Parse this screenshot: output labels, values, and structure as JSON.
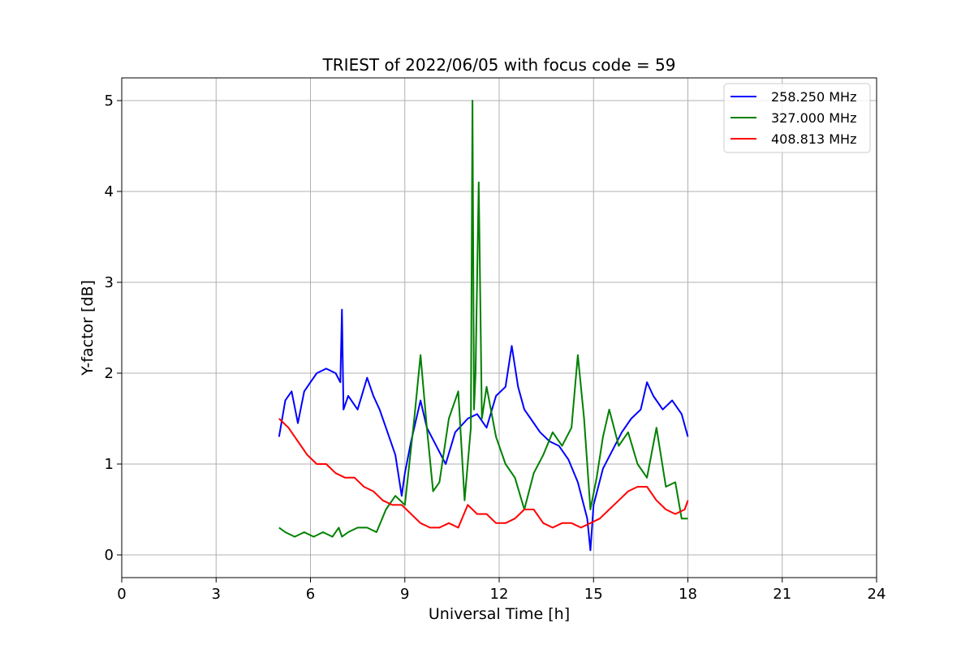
{
  "chart_data": {
    "type": "line",
    "title": "TRIEST of 2022/06/05 with focus code = 59",
    "xlabel": "Universal Time [h]",
    "ylabel": "Y-factor [dB]",
    "xlim": [
      0,
      24
    ],
    "ylim": [
      -0.25,
      5.25
    ],
    "xticks": [
      0,
      3,
      6,
      9,
      12,
      15,
      18,
      21,
      24
    ],
    "yticks": [
      0,
      1,
      2,
      3,
      4,
      5
    ],
    "grid": true,
    "legend_position": "top-right",
    "series": [
      {
        "name": "258.250 MHz",
        "color": "#0000ff",
        "x": [
          5.0,
          5.2,
          5.4,
          5.6,
          5.8,
          6.0,
          6.2,
          6.5,
          6.8,
          6.95,
          7.0,
          7.05,
          7.2,
          7.5,
          7.8,
          8.0,
          8.2,
          8.5,
          8.7,
          8.9,
          9.0,
          9.2,
          9.5,
          9.7,
          10.0,
          10.3,
          10.6,
          11.0,
          11.3,
          11.6,
          11.9,
          12.2,
          12.4,
          12.6,
          12.8,
          13.0,
          13.3,
          13.6,
          13.9,
          14.2,
          14.5,
          14.8,
          14.9,
          15.0,
          15.3,
          15.6,
          15.9,
          16.2,
          16.5,
          16.7,
          16.9,
          17.2,
          17.5,
          17.8,
          18.0
        ],
        "y": [
          1.3,
          1.7,
          1.8,
          1.45,
          1.8,
          1.9,
          2.0,
          2.05,
          2.0,
          1.9,
          2.7,
          1.6,
          1.75,
          1.6,
          1.95,
          1.75,
          1.6,
          1.3,
          1.1,
          0.65,
          0.9,
          1.25,
          1.7,
          1.4,
          1.2,
          1.0,
          1.35,
          1.5,
          1.55,
          1.4,
          1.75,
          1.85,
          2.3,
          1.85,
          1.6,
          1.5,
          1.35,
          1.25,
          1.2,
          1.05,
          0.8,
          0.4,
          0.05,
          0.55,
          0.95,
          1.15,
          1.35,
          1.5,
          1.6,
          1.9,
          1.75,
          1.6,
          1.7,
          1.55,
          1.3
        ]
      },
      {
        "name": "327.000 MHz",
        "color": "#008000",
        "x": [
          5.0,
          5.2,
          5.5,
          5.8,
          6.1,
          6.4,
          6.7,
          6.9,
          7.0,
          7.2,
          7.5,
          7.8,
          8.1,
          8.4,
          8.7,
          9.0,
          9.3,
          9.5,
          9.7,
          9.9,
          10.1,
          10.4,
          10.7,
          10.9,
          11.1,
          11.15,
          11.2,
          11.25,
          11.35,
          11.45,
          11.6,
          11.9,
          12.2,
          12.5,
          12.8,
          13.1,
          13.4,
          13.7,
          14.0,
          14.3,
          14.5,
          14.7,
          14.9,
          15.1,
          15.3,
          15.5,
          15.8,
          16.1,
          16.4,
          16.7,
          17.0,
          17.3,
          17.6,
          17.8,
          18.0
        ],
        "y": [
          0.3,
          0.25,
          0.2,
          0.25,
          0.2,
          0.25,
          0.2,
          0.3,
          0.2,
          0.25,
          0.3,
          0.3,
          0.25,
          0.5,
          0.65,
          0.55,
          1.5,
          2.2,
          1.4,
          0.7,
          0.8,
          1.5,
          1.8,
          0.6,
          1.4,
          5.0,
          1.6,
          2.0,
          4.1,
          1.5,
          1.85,
          1.3,
          1.0,
          0.85,
          0.5,
          0.9,
          1.1,
          1.35,
          1.2,
          1.4,
          2.2,
          1.5,
          0.5,
          0.85,
          1.3,
          1.6,
          1.2,
          1.35,
          1.0,
          0.85,
          1.4,
          0.75,
          0.8,
          0.4,
          0.4
        ]
      },
      {
        "name": "408.813 MHz",
        "color": "#ff0000",
        "x": [
          5.0,
          5.3,
          5.6,
          5.9,
          6.2,
          6.5,
          6.8,
          7.1,
          7.4,
          7.7,
          8.0,
          8.3,
          8.6,
          8.9,
          9.2,
          9.5,
          9.8,
          10.1,
          10.4,
          10.7,
          11.0,
          11.3,
          11.6,
          11.9,
          12.2,
          12.5,
          12.8,
          13.1,
          13.4,
          13.7,
          14.0,
          14.3,
          14.6,
          14.9,
          15.2,
          15.5,
          15.8,
          16.1,
          16.4,
          16.7,
          17.0,
          17.3,
          17.6,
          17.9,
          18.0
        ],
        "y": [
          1.5,
          1.4,
          1.25,
          1.1,
          1.0,
          1.0,
          0.9,
          0.85,
          0.85,
          0.75,
          0.7,
          0.6,
          0.55,
          0.55,
          0.45,
          0.35,
          0.3,
          0.3,
          0.35,
          0.3,
          0.55,
          0.45,
          0.45,
          0.35,
          0.35,
          0.4,
          0.5,
          0.5,
          0.35,
          0.3,
          0.35,
          0.35,
          0.3,
          0.35,
          0.4,
          0.5,
          0.6,
          0.7,
          0.75,
          0.75,
          0.6,
          0.5,
          0.45,
          0.5,
          0.6
        ]
      }
    ]
  }
}
